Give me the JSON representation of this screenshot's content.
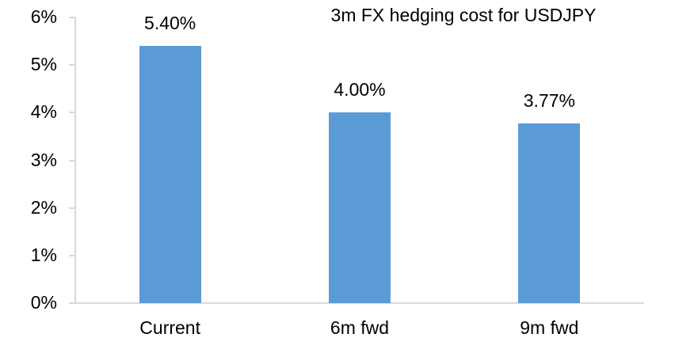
{
  "chart_data": {
    "type": "bar",
    "title": "3m FX hedging cost for USDJPY",
    "categories": [
      "Current",
      "6m fwd",
      "9m fwd"
    ],
    "values": [
      5.4,
      4.0,
      3.77
    ],
    "value_labels": [
      "5.40%",
      "4.00%",
      "3.77%"
    ],
    "ylabel": "",
    "xlabel": "",
    "ylim": [
      0,
      6
    ],
    "ytick_step": 1,
    "ytick_labels": [
      "0%",
      "1%",
      "2%",
      "3%",
      "4%",
      "5%",
      "6%"
    ],
    "grid": false,
    "legend_position": "none",
    "bar_color": "#5b9bd5",
    "axis_color": "#d9d9d9",
    "text_color": "#000000",
    "background_color": "#ffffff"
  }
}
